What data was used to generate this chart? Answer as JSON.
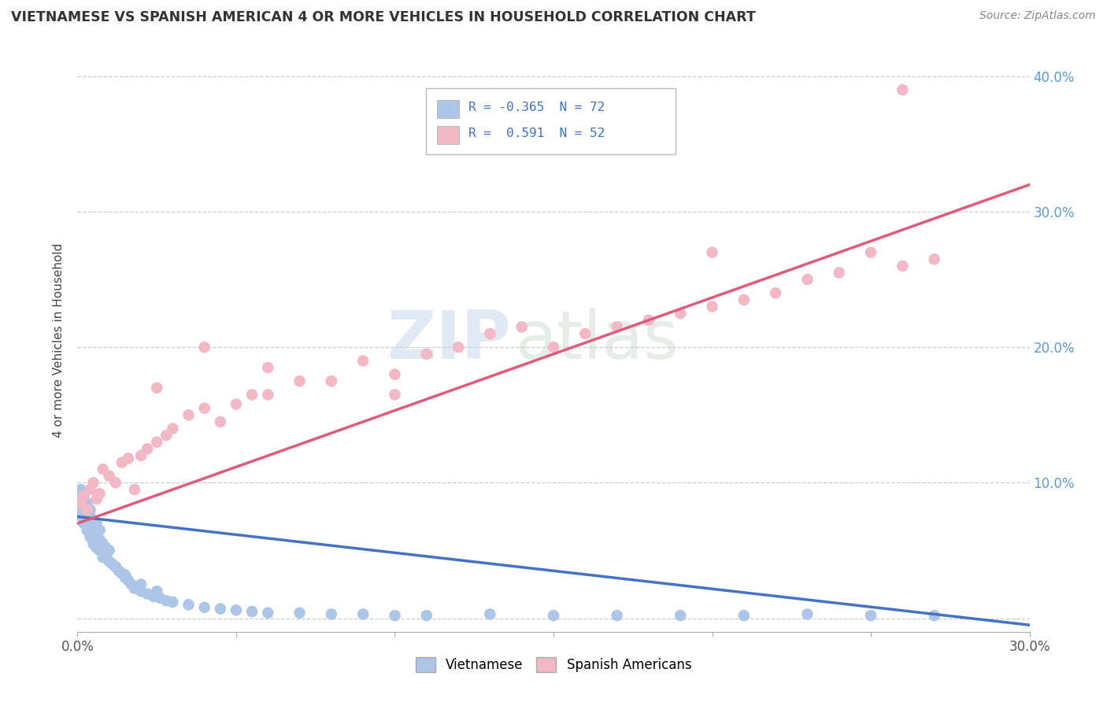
{
  "title": "VIETNAMESE VS SPANISH AMERICAN 4 OR MORE VEHICLES IN HOUSEHOLD CORRELATION CHART",
  "source": "Source: ZipAtlas.com",
  "ylabel": "4 or more Vehicles in Household",
  "x_min": 0.0,
  "x_max": 0.3,
  "y_min": -0.01,
  "y_max": 0.42,
  "vietnamese_color": "#adc6e8",
  "spanish_color": "#f2b8c6",
  "vietnamese_line_color": "#4472c4",
  "spanish_line_color": "#e05a7a",
  "watermark_zip": "ZIP",
  "watermark_atlas": "atlas",
  "viet_x": [
    0.001,
    0.001,
    0.001,
    0.001,
    0.001,
    0.002,
    0.002,
    0.002,
    0.002,
    0.002,
    0.003,
    0.003,
    0.003,
    0.003,
    0.004,
    0.004,
    0.004,
    0.004,
    0.005,
    0.005,
    0.005,
    0.006,
    0.006,
    0.006,
    0.007,
    0.007,
    0.007,
    0.008,
    0.008,
    0.009,
    0.009,
    0.01,
    0.01,
    0.011,
    0.012,
    0.013,
    0.014,
    0.015,
    0.016,
    0.017,
    0.018,
    0.02,
    0.022,
    0.024,
    0.026,
    0.028,
    0.03,
    0.035,
    0.04,
    0.045,
    0.05,
    0.055,
    0.06,
    0.07,
    0.08,
    0.09,
    0.1,
    0.11,
    0.13,
    0.15,
    0.17,
    0.19,
    0.21,
    0.23,
    0.25,
    0.27,
    0.005,
    0.008,
    0.012,
    0.015,
    0.02,
    0.025
  ],
  "viet_y": [
    0.075,
    0.08,
    0.085,
    0.09,
    0.095,
    0.07,
    0.075,
    0.082,
    0.088,
    0.092,
    0.065,
    0.072,
    0.078,
    0.085,
    0.06,
    0.068,
    0.075,
    0.08,
    0.055,
    0.065,
    0.072,
    0.052,
    0.062,
    0.07,
    0.05,
    0.058,
    0.065,
    0.048,
    0.055,
    0.045,
    0.052,
    0.042,
    0.05,
    0.04,
    0.038,
    0.035,
    0.033,
    0.03,
    0.028,
    0.025,
    0.022,
    0.02,
    0.018,
    0.016,
    0.015,
    0.013,
    0.012,
    0.01,
    0.008,
    0.007,
    0.006,
    0.005,
    0.004,
    0.004,
    0.003,
    0.003,
    0.002,
    0.002,
    0.003,
    0.002,
    0.002,
    0.002,
    0.002,
    0.003,
    0.002,
    0.002,
    0.058,
    0.045,
    0.038,
    0.032,
    0.025,
    0.02
  ],
  "span_x": [
    0.001,
    0.002,
    0.003,
    0.004,
    0.005,
    0.006,
    0.007,
    0.008,
    0.01,
    0.012,
    0.014,
    0.016,
    0.018,
    0.02,
    0.022,
    0.025,
    0.028,
    0.03,
    0.035,
    0.04,
    0.045,
    0.05,
    0.055,
    0.06,
    0.07,
    0.08,
    0.09,
    0.1,
    0.11,
    0.12,
    0.13,
    0.14,
    0.15,
    0.16,
    0.17,
    0.18,
    0.19,
    0.2,
    0.21,
    0.22,
    0.23,
    0.24,
    0.25,
    0.26,
    0.27,
    0.025,
    0.04,
    0.06,
    0.08,
    0.1,
    0.2,
    0.26
  ],
  "span_y": [
    0.085,
    0.09,
    0.08,
    0.095,
    0.1,
    0.088,
    0.092,
    0.11,
    0.105,
    0.1,
    0.115,
    0.118,
    0.095,
    0.12,
    0.125,
    0.13,
    0.135,
    0.14,
    0.15,
    0.155,
    0.145,
    0.158,
    0.165,
    0.165,
    0.175,
    0.175,
    0.19,
    0.18,
    0.195,
    0.2,
    0.21,
    0.215,
    0.2,
    0.21,
    0.215,
    0.22,
    0.225,
    0.23,
    0.235,
    0.24,
    0.25,
    0.255,
    0.27,
    0.26,
    0.265,
    0.17,
    0.2,
    0.185,
    0.175,
    0.165,
    0.27,
    0.39
  ],
  "viet_line_x0": 0.0,
  "viet_line_y0": 0.075,
  "viet_line_x1": 0.3,
  "viet_line_y1": -0.005,
  "span_line_x0": 0.0,
  "span_line_y0": 0.07,
  "span_line_x1": 0.3,
  "span_line_y1": 0.32
}
